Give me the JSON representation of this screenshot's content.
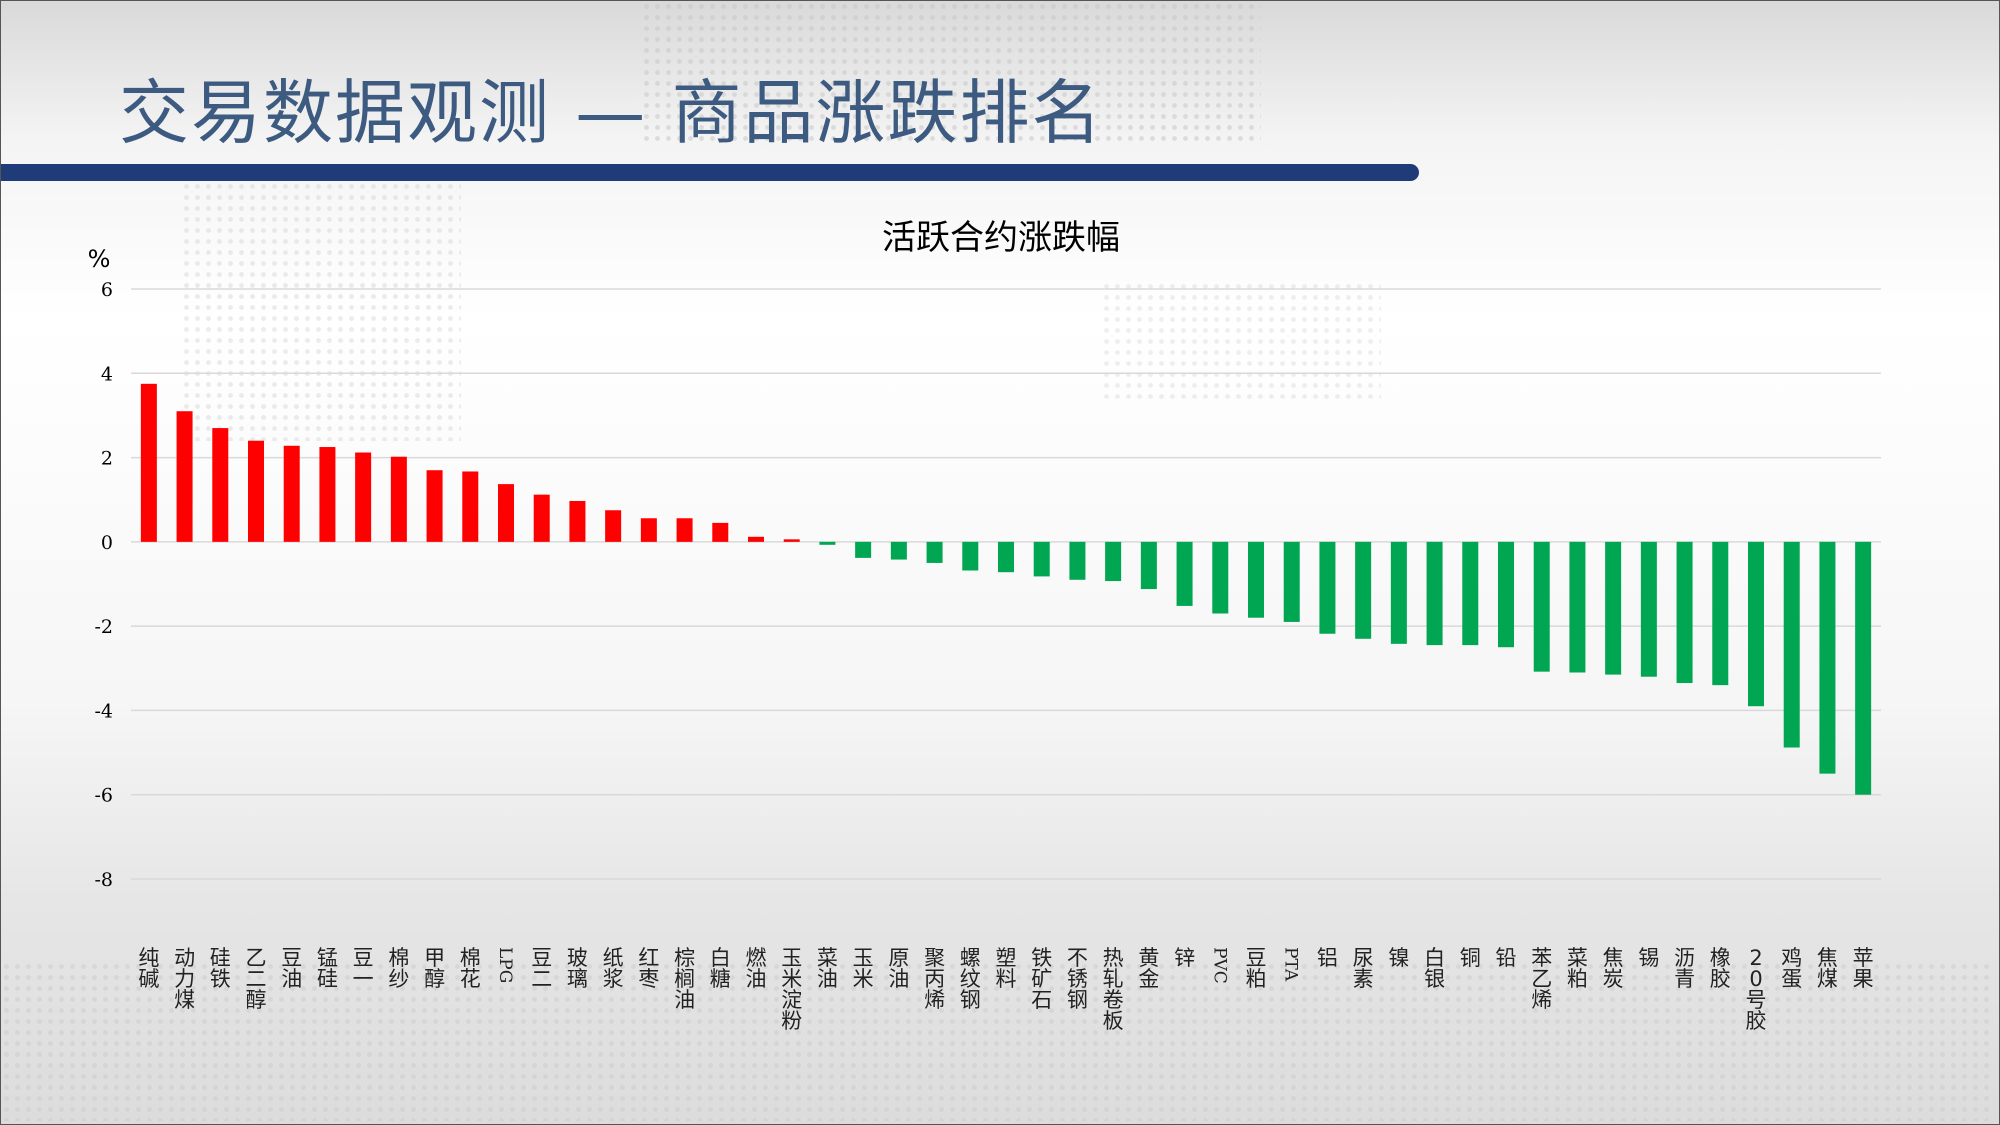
{
  "header": {
    "title": "交易数据观测 — 商品涨跌排名"
  },
  "colors": {
    "title": "#3d5a80",
    "bar_accent": "#1f3c78",
    "up": "#ff0000",
    "down": "#00a651",
    "grid": "#d9d9d9"
  },
  "chart_data": {
    "type": "bar",
    "title": "活跃合约涨跌幅",
    "ylabel": "%",
    "xlabel": "",
    "ylim": [
      -8,
      6
    ],
    "yticks": [
      6,
      4,
      2,
      0,
      -2,
      -4,
      -6,
      -8
    ],
    "grid": true,
    "categories": [
      "纯碱",
      "动力煤",
      "硅铁",
      "乙二醇",
      "豆油",
      "锰硅",
      "豆一",
      "棉纱",
      "甲醇",
      "棉花",
      "LPG",
      "豆二",
      "玻璃",
      "纸浆",
      "红枣",
      "棕榈油",
      "白糖",
      "燃油",
      "玉米淀粉",
      "菜油",
      "玉米",
      "原油",
      "聚丙烯",
      "螺纹钢",
      "塑料",
      "铁矿石",
      "不锈钢",
      "热轧卷板",
      "黄金",
      "锌",
      "PVC",
      "豆粕",
      "PTA",
      "铝",
      "尿素",
      "镍",
      "白银",
      "铜",
      "铅",
      "苯乙烯",
      "菜粕",
      "焦炭",
      "锡",
      "沥青",
      "橡胶",
      "20号胶",
      "鸡蛋",
      "焦煤",
      "苹果"
    ],
    "values": [
      3.75,
      3.1,
      2.7,
      2.4,
      2.28,
      2.25,
      2.12,
      2.02,
      1.7,
      1.67,
      1.37,
      1.12,
      0.97,
      0.75,
      0.56,
      0.56,
      0.45,
      0.12,
      0.06,
      -0.07,
      -0.38,
      -0.42,
      -0.5,
      -0.68,
      -0.72,
      -0.82,
      -0.9,
      -0.93,
      -1.12,
      -1.52,
      -1.7,
      -1.8,
      -1.9,
      -2.18,
      -2.3,
      -2.42,
      -2.45,
      -2.45,
      -2.5,
      -3.08,
      -3.1,
      -3.15,
      -3.2,
      -3.35,
      -3.4,
      -3.9,
      -4.88,
      -5.5,
      -6.0
    ]
  }
}
